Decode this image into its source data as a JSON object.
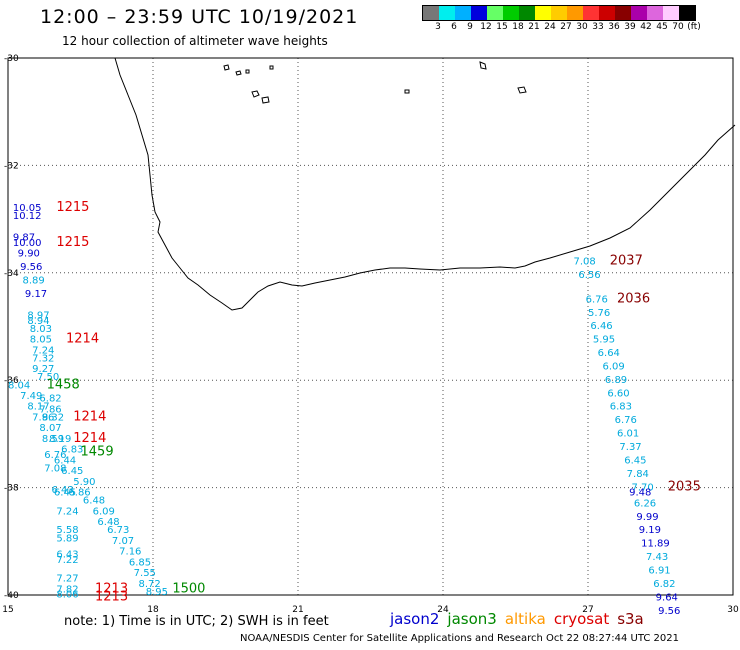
{
  "title": "12:00 – 23:59 UTC 10/19/2021",
  "subtitle": "12 hour collection of altimeter wave heights",
  "color_scale": {
    "colors": [
      "#777777",
      "#00eeee",
      "#00b0ff",
      "#0000dd",
      "#66ff66",
      "#00cc00",
      "#008800",
      "#ffff00",
      "#ffcc00",
      "#ff9900",
      "#ff3333",
      "#cc0000",
      "#880000",
      "#aa00aa",
      "#dd66dd",
      "#ffccff",
      "#000000"
    ],
    "labels": [
      "3",
      "6",
      "9",
      "12",
      "15",
      "18",
      "21",
      "24",
      "27",
      "30",
      "33",
      "36",
      "39",
      "42",
      "45",
      "70",
      "(ft)"
    ]
  },
  "axes": {
    "x_ticks": [
      "15",
      "18",
      "21",
      "24",
      "27",
      "30"
    ],
    "y_ticks": [
      "-30",
      "-32",
      "-34",
      "-36",
      "-38",
      "-40"
    ]
  },
  "colors": {
    "jason2": "#0000cc",
    "jason3": "#008800",
    "altika": "#ff9900",
    "cryosat": "#dd0000",
    "s3a": "#880000",
    "light": "#00aadd"
  },
  "observations": [
    {
      "v": "10.05",
      "lon": 15.1,
      "lat": -32.85,
      "c": "jason2"
    },
    {
      "v": "10.12",
      "lon": 15.1,
      "lat": -33.0,
      "c": "jason2"
    },
    {
      "v": "9.87",
      "lon": 15.1,
      "lat": -33.4,
      "c": "jason2"
    },
    {
      "v": "10.00",
      "lon": 15.1,
      "lat": -33.5,
      "c": "jason2"
    },
    {
      "v": "9.90",
      "lon": 15.2,
      "lat": -33.7,
      "c": "jason2"
    },
    {
      "v": "9.56",
      "lon": 15.25,
      "lat": -33.95,
      "c": "jason2"
    },
    {
      "v": "8.89",
      "lon": 15.3,
      "lat": -34.2,
      "c": "light"
    },
    {
      "v": "9.17",
      "lon": 15.35,
      "lat": -34.45,
      "c": "jason2"
    },
    {
      "v": "8.97",
      "lon": 15.4,
      "lat": -34.85,
      "c": "light"
    },
    {
      "v": "8.94",
      "lon": 15.4,
      "lat": -34.95,
      "c": "light"
    },
    {
      "v": "8.03",
      "lon": 15.45,
      "lat": -35.1,
      "c": "light"
    },
    {
      "v": "8.05",
      "lon": 15.45,
      "lat": -35.3,
      "c": "light"
    },
    {
      "v": "7.24",
      "lon": 15.5,
      "lat": -35.5,
      "c": "light"
    },
    {
      "v": "7.32",
      "lon": 15.5,
      "lat": -35.65,
      "c": "light"
    },
    {
      "v": "9.27",
      "lon": 15.5,
      "lat": -35.85,
      "c": "light"
    },
    {
      "v": "7.50",
      "lon": 15.6,
      "lat": -36.0,
      "c": "light"
    },
    {
      "v": "8.04",
      "lon": 15.0,
      "lat": -36.15,
      "c": "light"
    },
    {
      "v": "7.49",
      "lon": 15.25,
      "lat": -36.35,
      "c": "light"
    },
    {
      "v": "6.82",
      "lon": 15.65,
      "lat": -36.4,
      "c": "light"
    },
    {
      "v": "8.17",
      "lon": 15.4,
      "lat": -36.55,
      "c": "light"
    },
    {
      "v": "7.86",
      "lon": 15.65,
      "lat": -36.6,
      "c": "light"
    },
    {
      "v": "7.96",
      "lon": 15.5,
      "lat": -36.75,
      "c": "light"
    },
    {
      "v": "8.32",
      "lon": 15.7,
      "lat": -36.75,
      "c": "light"
    },
    {
      "v": "8.07",
      "lon": 15.65,
      "lat": -36.95,
      "c": "light"
    },
    {
      "v": "8.59",
      "lon": 15.7,
      "lat": -37.15,
      "c": "light"
    },
    {
      "v": "8.19",
      "lon": 15.85,
      "lat": -37.15,
      "c": "light"
    },
    {
      "v": "6.83",
      "lon": 16.1,
      "lat": -37.35,
      "c": "light"
    },
    {
      "v": "6.76",
      "lon": 15.75,
      "lat": -37.45,
      "c": "light"
    },
    {
      "v": "6.44",
      "lon": 15.95,
      "lat": -37.55,
      "c": "light"
    },
    {
      "v": "7.08",
      "lon": 15.75,
      "lat": -37.7,
      "c": "light"
    },
    {
      "v": "6.45",
      "lon": 16.1,
      "lat": -37.75,
      "c": "light"
    },
    {
      "v": "5.90",
      "lon": 16.35,
      "lat": -37.95,
      "c": "light"
    },
    {
      "v": "6.43",
      "lon": 15.9,
      "lat": -38.1,
      "c": "light"
    },
    {
      "v": "6.45",
      "lon": 15.95,
      "lat": -38.15,
      "c": "light"
    },
    {
      "v": "6.86",
      "lon": 16.25,
      "lat": -38.15,
      "c": "light"
    },
    {
      "v": "6.48",
      "lon": 16.55,
      "lat": -38.3,
      "c": "light"
    },
    {
      "v": "7.24",
      "lon": 16.0,
      "lat": -38.5,
      "c": "light"
    },
    {
      "v": "6.09",
      "lon": 16.75,
      "lat": -38.5,
      "c": "light"
    },
    {
      "v": "6.48",
      "lon": 16.85,
      "lat": -38.7,
      "c": "light"
    },
    {
      "v": "5.58",
      "lon": 16.0,
      "lat": -38.85,
      "c": "light"
    },
    {
      "v": "6.73",
      "lon": 17.05,
      "lat": -38.85,
      "c": "light"
    },
    {
      "v": "5.89",
      "lon": 16.0,
      "lat": -39.0,
      "c": "light"
    },
    {
      "v": "7.07",
      "lon": 17.15,
      "lat": -39.05,
      "c": "light"
    },
    {
      "v": "6.43",
      "lon": 16.0,
      "lat": -39.3,
      "c": "light"
    },
    {
      "v": "7.16",
      "lon": 17.3,
      "lat": -39.25,
      "c": "light"
    },
    {
      "v": "7.22",
      "lon": 16.0,
      "lat": -39.4,
      "c": "light"
    },
    {
      "v": "6.85",
      "lon": 17.5,
      "lat": -39.45,
      "c": "light"
    },
    {
      "v": "7.27",
      "lon": 16.0,
      "lat": -39.75,
      "c": "light"
    },
    {
      "v": "7.55",
      "lon": 17.6,
      "lat": -39.65,
      "c": "light"
    },
    {
      "v": "8.72",
      "lon": 17.7,
      "lat": -39.85,
      "c": "light"
    },
    {
      "v": "7.82",
      "lon": 16.0,
      "lat": -39.95,
      "c": "light"
    },
    {
      "v": "8.06",
      "lon": 16.0,
      "lat": -40.05,
      "c": "light"
    },
    {
      "v": "8.95",
      "lon": 17.85,
      "lat": -40.0,
      "c": "light"
    },
    {
      "v": "7.08",
      "lon": 26.7,
      "lat": -33.85,
      "c": "light"
    },
    {
      "v": "6.56",
      "lon": 26.8,
      "lat": -34.1,
      "c": "light"
    },
    {
      "v": "6.76",
      "lon": 26.95,
      "lat": -34.55,
      "c": "light"
    },
    {
      "v": "5.76",
      "lon": 27.0,
      "lat": -34.8,
      "c": "light"
    },
    {
      "v": "6.46",
      "lon": 27.05,
      "lat": -35.05,
      "c": "light"
    },
    {
      "v": "5.95",
      "lon": 27.1,
      "lat": -35.3,
      "c": "light"
    },
    {
      "v": "6.64",
      "lon": 27.2,
      "lat": -35.55,
      "c": "light"
    },
    {
      "v": "6.09",
      "lon": 27.3,
      "lat": -35.8,
      "c": "light"
    },
    {
      "v": "6.89",
      "lon": 27.35,
      "lat": -36.05,
      "c": "light"
    },
    {
      "v": "6.60",
      "lon": 27.4,
      "lat": -36.3,
      "c": "light"
    },
    {
      "v": "6.83",
      "lon": 27.45,
      "lat": -36.55,
      "c": "light"
    },
    {
      "v": "6.76",
      "lon": 27.55,
      "lat": -36.8,
      "c": "light"
    },
    {
      "v": "6.01",
      "lon": 27.6,
      "lat": -37.05,
      "c": "light"
    },
    {
      "v": "7.37",
      "lon": 27.65,
      "lat": -37.3,
      "c": "light"
    },
    {
      "v": "6.45",
      "lon": 27.75,
      "lat": -37.55,
      "c": "light"
    },
    {
      "v": "7.84",
      "lon": 27.8,
      "lat": -37.8,
      "c": "light"
    },
    {
      "v": "7.70",
      "lon": 27.9,
      "lat": -38.05,
      "c": "light"
    },
    {
      "v": "9.48",
      "lon": 27.85,
      "lat": -38.15,
      "c": "jason2"
    },
    {
      "v": "6.26",
      "lon": 27.95,
      "lat": -38.35,
      "c": "light"
    },
    {
      "v": "9.99",
      "lon": 28.0,
      "lat": -38.6,
      "c": "jason2"
    },
    {
      "v": "9.19",
      "lon": 28.05,
      "lat": -38.85,
      "c": "jason2"
    },
    {
      "v": "11.89",
      "lon": 28.1,
      "lat": -39.1,
      "c": "jason2"
    },
    {
      "v": "7.43",
      "lon": 28.2,
      "lat": -39.35,
      "c": "light"
    },
    {
      "v": "6.91",
      "lon": 28.25,
      "lat": -39.6,
      "c": "light"
    },
    {
      "v": "6.82",
      "lon": 28.35,
      "lat": -39.85,
      "c": "light"
    },
    {
      "v": "9.64",
      "lon": 28.4,
      "lat": -40.1,
      "c": "jason2"
    },
    {
      "v": "9.56",
      "lon": 28.45,
      "lat": -40.35,
      "c": "jason2"
    }
  ],
  "times": [
    {
      "v": "1215",
      "lon": 16.0,
      "lat": -32.85,
      "c": "cryosat"
    },
    {
      "v": "1215",
      "lon": 16.0,
      "lat": -33.5,
      "c": "cryosat"
    },
    {
      "v": "1214",
      "lon": 16.2,
      "lat": -35.3,
      "c": "cryosat"
    },
    {
      "v": "1458",
      "lon": 15.8,
      "lat": -36.15,
      "c": "jason3"
    },
    {
      "v": "1214",
      "lon": 16.35,
      "lat": -36.75,
      "c": "cryosat"
    },
    {
      "v": "1214",
      "lon": 16.35,
      "lat": -37.15,
      "c": "cryosat"
    },
    {
      "v": "1459",
      "lon": 16.5,
      "lat": -37.4,
      "c": "jason3"
    },
    {
      "v": "1213",
      "lon": 16.8,
      "lat": -39.95,
      "c": "cryosat"
    },
    {
      "v": "1213",
      "lon": 16.8,
      "lat": -40.1,
      "c": "cryosat"
    },
    {
      "v": "1500",
      "lon": 18.4,
      "lat": -39.95,
      "c": "jason3"
    },
    {
      "v": "2037",
      "lon": 27.45,
      "lat": -33.85,
      "c": "s3a"
    },
    {
      "v": "2036",
      "lon": 27.6,
      "lat": -34.55,
      "c": "s3a"
    },
    {
      "v": "2035",
      "lon": 28.65,
      "lat": -38.05,
      "c": "s3a"
    }
  ],
  "footer": {
    "note": "note:  1) Time is in UTC; 2) SWH is in feet",
    "credit": "NOAA/NESDIS Center for Satellite Applications and Research    Oct 22 08:27:44 UTC 2021"
  },
  "legend": [
    {
      "label": "jason2",
      "color": "#0000cc"
    },
    {
      "label": "jason3",
      "color": "#008800"
    },
    {
      "label": "altika",
      "color": "#ff9900"
    },
    {
      "label": "cryosat",
      "color": "#dd0000"
    },
    {
      "label": "s3a",
      "color": "#880000"
    }
  ]
}
